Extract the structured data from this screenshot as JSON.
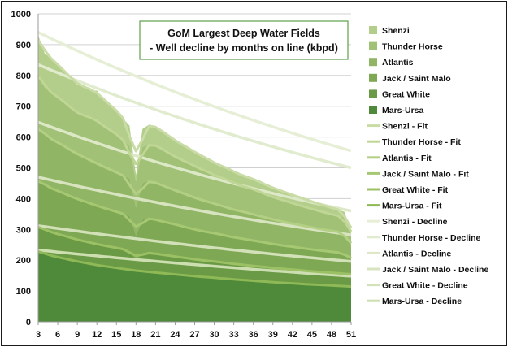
{
  "chart_data": {
    "type": "area",
    "title_lines": [
      "GoM Largest Deep Water Fields",
      "- Well decline by months on line (kbpd)"
    ],
    "title": "GoM Largest Deep Water Fields - Well decline by months on line (kbpd)",
    "xlabel": "",
    "ylabel": "",
    "ylim": [
      0,
      1000
    ],
    "y_ticks": [
      0,
      100,
      200,
      300,
      400,
      500,
      600,
      700,
      800,
      900,
      1000
    ],
    "x": [
      3,
      4,
      5,
      6,
      7,
      8,
      9,
      10,
      11,
      12,
      13,
      14,
      15,
      16,
      17,
      18,
      19,
      20,
      21,
      22,
      23,
      24,
      25,
      26,
      27,
      28,
      29,
      30,
      31,
      32,
      33,
      34,
      35,
      36,
      37,
      38,
      39,
      40,
      41,
      42,
      43,
      44,
      45,
      46,
      47,
      48,
      49,
      50,
      51
    ],
    "x_tick_labels": [
      "3",
      "6",
      "9",
      "12",
      "15",
      "18",
      "21",
      "24",
      "27",
      "30",
      "33",
      "36",
      "39",
      "42",
      "45",
      "48",
      "51"
    ],
    "grid": "horizontal",
    "legend_position": "right",
    "stacked": true,
    "series": [
      {
        "name": "Mars-Ursa",
        "color": "#4f8a3a",
        "values": [
          230,
          222,
          214,
          210,
          206,
          200,
          196,
          192,
          188,
          184,
          181,
          178,
          175,
          172,
          169,
          166,
          164,
          162,
          160,
          158,
          156,
          154,
          152,
          150,
          148,
          146,
          145,
          143,
          141,
          140,
          138,
          136,
          135,
          133,
          132,
          130,
          129,
          127,
          126,
          125,
          124,
          122,
          121,
          120,
          119,
          118,
          117,
          116,
          114
        ]
      },
      {
        "name": "Great White",
        "color": "#6a9a45",
        "values": [
          80,
          78,
          76,
          75,
          74,
          72,
          71,
          70,
          69,
          68,
          67,
          66,
          65,
          64,
          63,
          35,
          60,
          62,
          61,
          60,
          59,
          58,
          57,
          56,
          55,
          54,
          53,
          53,
          52,
          51,
          50,
          50,
          49,
          48,
          48,
          47,
          46,
          46,
          45,
          45,
          44,
          43,
          43,
          42,
          42,
          41,
          41,
          40,
          40
        ]
      },
      {
        "name": "Jack / Saint Malo",
        "color": "#7ea854",
        "values": [
          150,
          146,
          142,
          140,
          138,
          134,
          132,
          130,
          127,
          125,
          122,
          120,
          117,
          115,
          112,
          80,
          108,
          113,
          111,
          108,
          106,
          104,
          102,
          99,
          97,
          95,
          93,
          92,
          90,
          88,
          86,
          85,
          84,
          82,
          81,
          79,
          78,
          76,
          75,
          74,
          73,
          72,
          71,
          70,
          69,
          68,
          67,
          66,
          48
        ]
      },
      {
        "name": "Atlantis",
        "color": "#90b565",
        "values": [
          170,
          165,
          160,
          157,
          154,
          150,
          146,
          143,
          140,
          137,
          134,
          131,
          128,
          125,
          122,
          90,
          118,
          122,
          120,
          117,
          114,
          111,
          108,
          106,
          103,
          101,
          99,
          96,
          94,
          92,
          90,
          88,
          87,
          85,
          83,
          81,
          80,
          78,
          77,
          75,
          74,
          73,
          72,
          70,
          69,
          68,
          67,
          66,
          42
        ]
      },
      {
        "name": "Thunder Horse",
        "color": "#a1c176",
        "values": [
          180,
          150,
          152,
          148,
          143,
          140,
          131,
          137,
          138,
          142,
          131,
          128,
          126,
          114,
          105,
          85,
          118,
          116,
          124,
          118,
          113,
          109,
          107,
          106,
          102,
          99,
          98,
          92,
          90,
          93,
          85,
          85,
          81,
          82,
          80,
          74,
          73,
          71,
          69,
          66,
          64,
          62,
          60,
          58,
          56,
          54,
          52,
          50,
          34
        ]
      },
      {
        "name": "Shenzi",
        "color": "#b3cd8b",
        "values": [
          120,
          110,
          112,
          106,
          98,
          100,
          92,
          96,
          88,
          95,
          85,
          82,
          78,
          70,
          66,
          20,
          58,
          65,
          60,
          56,
          58,
          52,
          50,
          48,
          46,
          44,
          42,
          40,
          39,
          38,
          36,
          35,
          34,
          33,
          32,
          31,
          30,
          29,
          28,
          27,
          26,
          25,
          24,
          23,
          22,
          21,
          20,
          19,
          10
        ]
      }
    ],
    "fit_series": [
      {
        "name": "Shenzi - Fit",
        "color": "#c9dca6"
      },
      {
        "name": "Thunder Horse - Fit",
        "color": "#bfd694"
      },
      {
        "name": "Atlantis - Fit",
        "color": "#b3cf84"
      },
      {
        "name": "Jack / Saint Malo - Fit",
        "color": "#a7c873"
      },
      {
        "name": "Great White - Fit",
        "color": "#9cc164"
      },
      {
        "name": "Mars-Ursa - Fit",
        "color": "#8fb956"
      }
    ],
    "decline_series": [
      {
        "name": "Shenzi - Decline",
        "color": "#e6efd6",
        "start": 940,
        "end": 555
      },
      {
        "name": "Thunder Horse - Decline",
        "color": "#e1ebce",
        "start": 835,
        "end": 500
      },
      {
        "name": "Atlantis - Decline",
        "color": "#dce8c6",
        "start": 648,
        "end": 360
      },
      {
        "name": "Jack / Saint Malo - Decline",
        "color": "#d7e4bf",
        "start": 470,
        "end": 282
      },
      {
        "name": "Great White - Decline",
        "color": "#d2e1b8",
        "start": 312,
        "end": 196
      },
      {
        "name": "Mars-Ursa - Decline",
        "color": "#cddeb1",
        "start": 233,
        "end": 148
      }
    ]
  }
}
